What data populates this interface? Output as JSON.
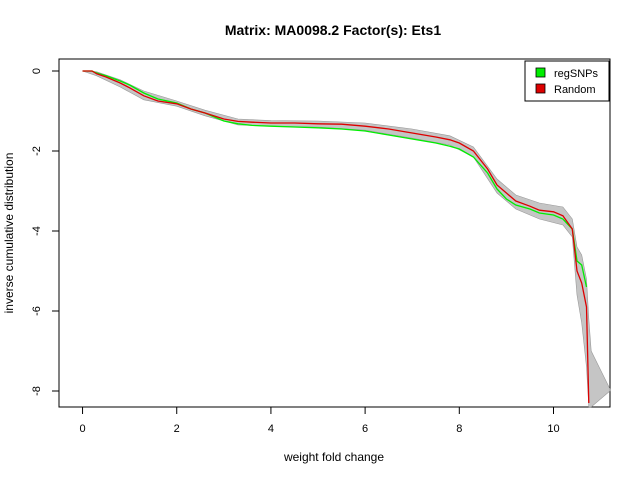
{
  "chart_data": {
    "type": "line",
    "title": "Matrix: MA0098.2 Factor(s): Ets1",
    "xlabel": "weight fold change",
    "ylabel": "inverse cumulative distribution",
    "xlim": [
      -0.5,
      11.2
    ],
    "ylim": [
      -8.4,
      0.3
    ],
    "xticks": [
      0,
      2,
      4,
      6,
      8,
      10
    ],
    "yticks": [
      0,
      -2,
      -4,
      -6,
      -8
    ],
    "grid": false,
    "legend_position": "top-right",
    "colors": {
      "regSNPs": "#00ee00",
      "Random": "#dd0000",
      "envelope": "#bbbbbb"
    },
    "legend": [
      {
        "label": "regSNPs",
        "color": "#00ee00"
      },
      {
        "label": "Random",
        "color": "#dd0000"
      }
    ],
    "series": [
      {
        "name": "regSNPs",
        "x": [
          0.0,
          0.2,
          0.3,
          0.5,
          0.8,
          1.0,
          1.3,
          1.6,
          2.0,
          2.3,
          2.6,
          3.0,
          3.3,
          3.6,
          4.0,
          4.5,
          5.0,
          5.5,
          6.0,
          6.5,
          7.0,
          7.5,
          7.8,
          8.0,
          8.3,
          8.6,
          8.8,
          9.0,
          9.2,
          9.5,
          9.7,
          10.0,
          10.2,
          10.4,
          10.5,
          10.6,
          10.7
        ],
        "y": [
          0.0,
          0.0,
          -0.05,
          -0.12,
          -0.25,
          -0.35,
          -0.55,
          -0.7,
          -0.8,
          -0.95,
          -1.05,
          -1.25,
          -1.32,
          -1.36,
          -1.38,
          -1.4,
          -1.42,
          -1.45,
          -1.5,
          -1.6,
          -1.7,
          -1.8,
          -1.88,
          -1.95,
          -2.15,
          -2.55,
          -2.95,
          -3.2,
          -3.35,
          -3.45,
          -3.55,
          -3.6,
          -3.7,
          -3.95,
          -4.75,
          -4.85,
          -5.4
        ]
      },
      {
        "name": "Random",
        "x": [
          0.0,
          0.2,
          0.3,
          0.5,
          0.8,
          1.0,
          1.3,
          1.6,
          2.0,
          2.3,
          2.6,
          3.0,
          3.3,
          3.6,
          4.0,
          4.5,
          5.0,
          5.5,
          6.0,
          6.5,
          7.0,
          7.5,
          7.8,
          8.0,
          8.3,
          8.6,
          8.8,
          9.0,
          9.2,
          9.5,
          9.7,
          10.0,
          10.2,
          10.4,
          10.5,
          10.6,
          10.7,
          10.75
        ],
        "y": [
          0.0,
          0.0,
          -0.07,
          -0.15,
          -0.3,
          -0.42,
          -0.62,
          -0.75,
          -0.82,
          -0.95,
          -1.05,
          -1.2,
          -1.26,
          -1.28,
          -1.3,
          -1.3,
          -1.32,
          -1.33,
          -1.38,
          -1.45,
          -1.55,
          -1.65,
          -1.72,
          -1.8,
          -2.0,
          -2.45,
          -2.85,
          -3.05,
          -3.25,
          -3.38,
          -3.48,
          -3.52,
          -3.62,
          -3.95,
          -5.0,
          -5.3,
          -5.9,
          -8.3
        ]
      }
    ],
    "envelope": {
      "x": [
        0.0,
        0.3,
        0.8,
        1.3,
        2.0,
        2.6,
        3.3,
        4.0,
        5.0,
        6.0,
        7.0,
        7.8,
        8.3,
        8.8,
        9.2,
        9.7,
        10.2,
        10.4,
        10.5,
        10.6,
        10.7,
        10.75,
        10.8,
        11.2
      ],
      "upper": [
        0.0,
        -0.02,
        -0.22,
        -0.5,
        -0.75,
        -0.98,
        -1.2,
        -1.24,
        -1.25,
        -1.3,
        -1.45,
        -1.62,
        -1.9,
        -2.7,
        -3.1,
        -3.3,
        -3.4,
        -3.7,
        -4.4,
        -4.6,
        -5.2,
        -6.2,
        -7.0,
        -7.95
      ],
      "lower": [
        0.0,
        -0.12,
        -0.4,
        -0.72,
        -0.88,
        -1.12,
        -1.35,
        -1.38,
        -1.4,
        -1.48,
        -1.68,
        -1.85,
        -2.15,
        -3.05,
        -3.45,
        -3.7,
        -3.85,
        -4.15,
        -5.6,
        -6.3,
        -7.4,
        -8.4,
        -8.4,
        -8.0
      ]
    }
  }
}
